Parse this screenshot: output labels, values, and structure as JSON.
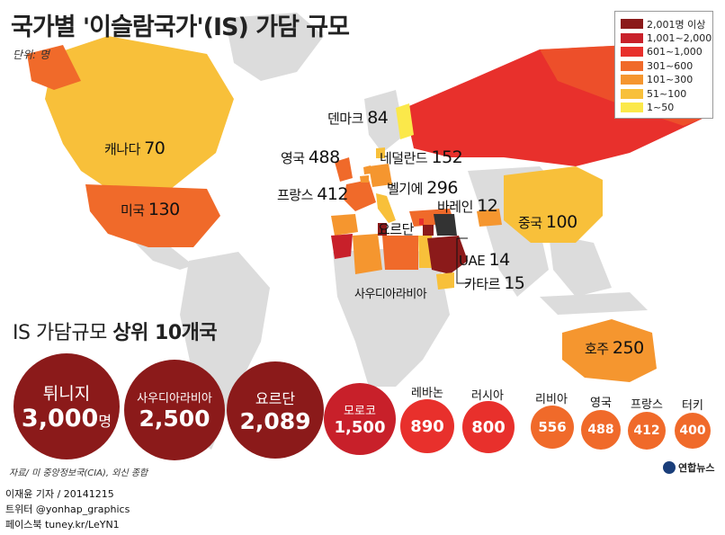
{
  "title": "국가별 '이슬람국가'(IS) 가담 규모",
  "unit": "단위: 명",
  "legend": {
    "items": [
      {
        "label": "2,001명 이상",
        "color": "#8b1a1a"
      },
      {
        "label": "1,001~2,000",
        "color": "#c8202a"
      },
      {
        "label": "601~1,000",
        "color": "#e8302c"
      },
      {
        "label": "301~600",
        "color": "#f06a2a"
      },
      {
        "label": "101~300",
        "color": "#f5962f"
      },
      {
        "label": "51~100",
        "color": "#f8c03a"
      },
      {
        "label": "1~50",
        "color": "#fbe84a"
      }
    ]
  },
  "map_labels": {
    "canada": {
      "name": "캐나다",
      "value": "70"
    },
    "usa": {
      "name": "미국",
      "value": "130"
    },
    "denmark": {
      "name": "덴마크",
      "value": "84"
    },
    "uk": {
      "name": "영국",
      "value": "488"
    },
    "netherlands": {
      "name": "네덜란드",
      "value": "152"
    },
    "france": {
      "name": "프랑스",
      "value": "412"
    },
    "belgium": {
      "name": "벨기에",
      "value": "296"
    },
    "jordan": {
      "name": "요르단",
      "value": ""
    },
    "bahrain": {
      "name": "바레인",
      "value": "12"
    },
    "china": {
      "name": "중국",
      "value": "100"
    },
    "uae": {
      "name": "UAE",
      "value": "14"
    },
    "saudi": {
      "name": "사우디아라비아",
      "value": ""
    },
    "qatar": {
      "name": "카타르",
      "value": "15"
    },
    "australia": {
      "name": "호주",
      "value": "250"
    }
  },
  "top10": {
    "title_prefix": "IS 가담규모",
    "title_bold": "상위 10개국",
    "countries": [
      {
        "name": "튀니지",
        "value": "3,000",
        "suffix": "명"
      },
      {
        "name": "사우디아라비아",
        "value": "2,500"
      },
      {
        "name": "요르단",
        "value": "2,089"
      },
      {
        "name": "모로코",
        "value": "1,500"
      },
      {
        "name": "레바논",
        "value": "890"
      },
      {
        "name": "러시아",
        "value": "800"
      },
      {
        "name": "리비아",
        "value": "556"
      },
      {
        "name": "영국",
        "value": "488"
      },
      {
        "name": "프랑스",
        "value": "412"
      },
      {
        "name": "터키",
        "value": "400"
      }
    ]
  },
  "source": "자료/ 미 중앙정보국(CIA), 외신 종합",
  "logo": "연합뉴스",
  "credits": [
    "이재윤 기자 / 20141215",
    "트위터 @yonhap_graphics",
    "페이스북 tuney.kr/LeYN1"
  ]
}
